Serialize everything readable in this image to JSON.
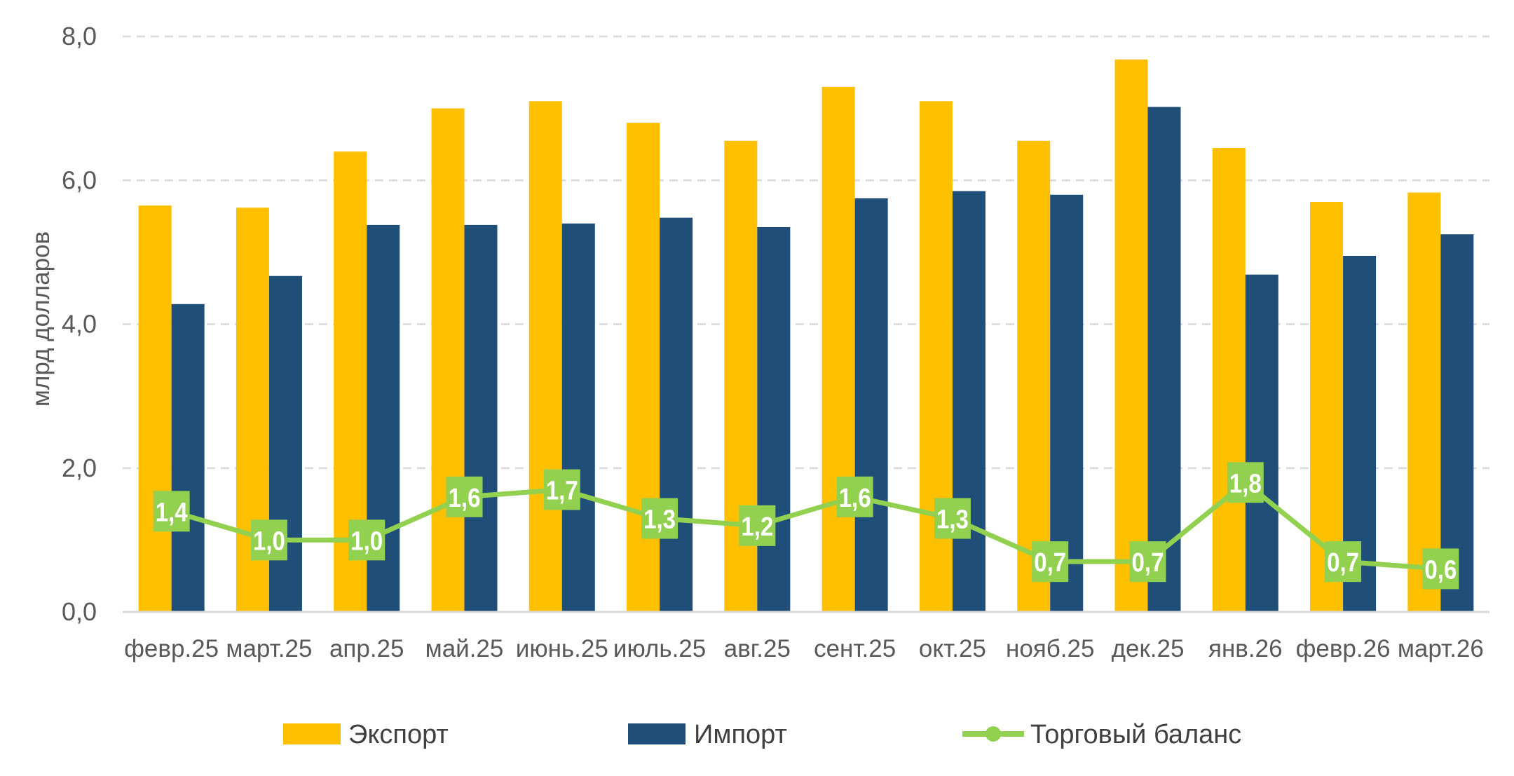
{
  "chart_data": {
    "type": "bar",
    "title": "",
    "xlabel": "",
    "ylabel": "млрд долларов",
    "ylim": [
      0,
      8
    ],
    "yticks": [
      "0,0",
      "2,0",
      "4,0",
      "6,0",
      "8,0"
    ],
    "grid": true,
    "legend_position": "bottom",
    "categories": [
      "февр.25",
      "март.25",
      "апр.25",
      "май.25",
      "июнь.25",
      "июль.25",
      "авг.25",
      "сент.25",
      "окт.25",
      "нояб.25",
      "дек.25",
      "янв.26",
      "февр.26",
      "март.26"
    ],
    "series": [
      {
        "name": "Экспорт",
        "type": "bar",
        "color": "#FFC000",
        "values": [
          5.65,
          5.62,
          6.4,
          7.0,
          7.1,
          6.8,
          6.55,
          7.3,
          7.1,
          6.55,
          7.68,
          6.45,
          5.7,
          5.83
        ]
      },
      {
        "name": "Импорт",
        "type": "bar",
        "color": "#1F4E79",
        "values": [
          4.28,
          4.67,
          5.38,
          5.38,
          5.4,
          5.48,
          5.35,
          5.75,
          5.85,
          5.8,
          7.02,
          4.69,
          4.95,
          5.25
        ]
      },
      {
        "name": "Торговый баланс",
        "type": "line",
        "color": "#92D050",
        "values": [
          1.4,
          1.0,
          1.0,
          1.6,
          1.7,
          1.3,
          1.2,
          1.6,
          1.3,
          0.7,
          0.7,
          1.8,
          0.7,
          0.6
        ],
        "labels": [
          "1,4",
          "1,0",
          "1,0",
          "1,6",
          "1,7",
          "1,3",
          "1,2",
          "1,6",
          "1,3",
          "0,7",
          "0,7",
          "1,8",
          "0,7",
          "0,6"
        ]
      }
    ]
  }
}
